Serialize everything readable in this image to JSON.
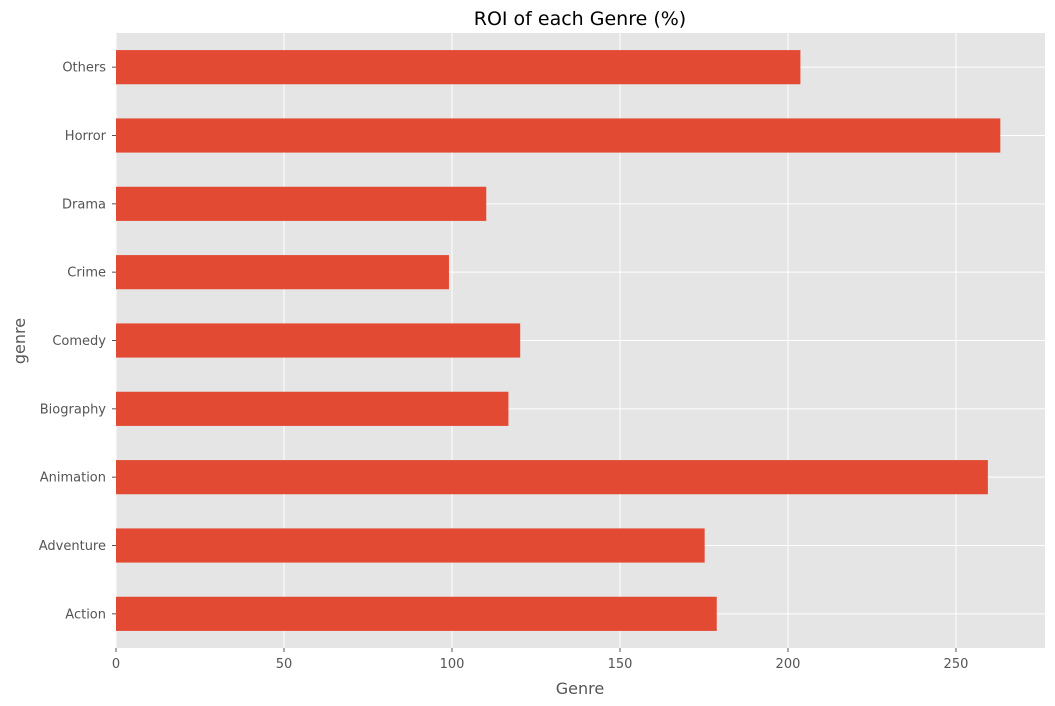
{
  "chart_data": {
    "type": "bar",
    "orientation": "horizontal",
    "title": "ROI of each Genre (%)",
    "xlabel": "Genre",
    "ylabel": "genre",
    "categories": [
      "Action",
      "Adventure",
      "Animation",
      "Biography",
      "Comedy",
      "Crime",
      "Drama",
      "Horror",
      "Others"
    ],
    "values": [
      178.8,
      175.2,
      259.5,
      116.8,
      120.3,
      99.1,
      110.2,
      263.2,
      203.7
    ],
    "xlim": [
      0,
      276.5
    ],
    "xticks": [
      0,
      50,
      100,
      150,
      200,
      250
    ],
    "grid": true,
    "bar_color": "#E24A33",
    "background_color": "#E5E5E5",
    "grid_color": "#FFFFFF"
  }
}
